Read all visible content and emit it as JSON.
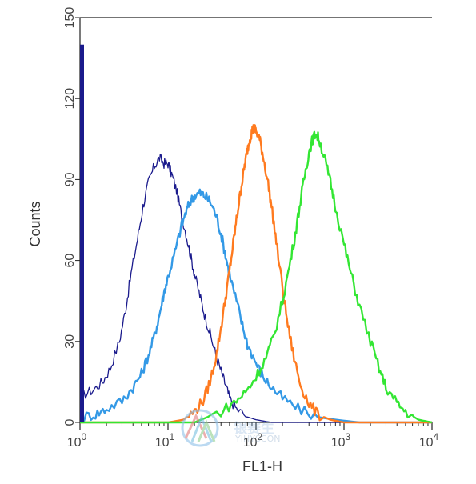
{
  "chart_data": {
    "type": "line",
    "title": "",
    "xlabel": "FL1-H",
    "ylabel": "Counts",
    "x_scale": "log",
    "xlim": [
      1,
      10000
    ],
    "ylim": [
      0,
      150
    ],
    "x_ticks": [
      {
        "base": "10",
        "exp": "0"
      },
      {
        "base": "10",
        "exp": "1"
      },
      {
        "base": "10",
        "exp": "2"
      },
      {
        "base": "10",
        "exp": "3"
      },
      {
        "base": "10",
        "exp": "4"
      }
    ],
    "y_ticks": [
      "0",
      "30",
      "60",
      "90",
      "120",
      "150"
    ],
    "grid": false,
    "legend": "none",
    "series": [
      {
        "color": "#1a1a8c",
        "points": [
          [
            1.05,
            10
          ],
          [
            1.4,
            12
          ],
          [
            1.8,
            15
          ],
          [
            2.2,
            20
          ],
          [
            2.8,
            30
          ],
          [
            3.3,
            42
          ],
          [
            3.8,
            55
          ],
          [
            4.5,
            68
          ],
          [
            5.2,
            80
          ],
          [
            6.0,
            89
          ],
          [
            7.0,
            95
          ],
          [
            8.0,
            98
          ],
          [
            9.0,
            96
          ],
          [
            10,
            96
          ],
          [
            11,
            92
          ],
          [
            12.5,
            86
          ],
          [
            14,
            78
          ],
          [
            16,
            70
          ],
          [
            18,
            62
          ],
          [
            20,
            55
          ],
          [
            23,
            47
          ],
          [
            26,
            40
          ],
          [
            30,
            33
          ],
          [
            35,
            25
          ],
          [
            40,
            19
          ],
          [
            45,
            14
          ],
          [
            50,
            9
          ],
          [
            60,
            5
          ],
          [
            80,
            2
          ],
          [
            100,
            1
          ],
          [
            150,
            0
          ],
          [
            300,
            0
          ],
          [
            10000,
            0
          ]
        ]
      },
      {
        "color": "#3399e6",
        "points": [
          [
            1.05,
            2
          ],
          [
            1.5,
            3
          ],
          [
            2,
            5
          ],
          [
            3,
            8
          ],
          [
            4,
            13
          ],
          [
            5,
            18
          ],
          [
            6,
            25
          ],
          [
            7,
            32
          ],
          [
            8,
            40
          ],
          [
            9,
            48
          ],
          [
            10,
            54
          ],
          [
            12,
            63
          ],
          [
            14,
            72
          ],
          [
            16,
            78
          ],
          [
            18,
            82
          ],
          [
            20,
            84
          ],
          [
            23,
            85
          ],
          [
            26,
            84
          ],
          [
            30,
            82
          ],
          [
            35,
            77
          ],
          [
            40,
            70
          ],
          [
            45,
            62
          ],
          [
            50,
            55
          ],
          [
            60,
            45
          ],
          [
            70,
            36
          ],
          [
            80,
            29
          ],
          [
            100,
            22
          ],
          [
            120,
            17
          ],
          [
            150,
            13
          ],
          [
            200,
            9
          ],
          [
            300,
            5
          ],
          [
            500,
            2
          ],
          [
            800,
            1
          ],
          [
            1500,
            0
          ],
          [
            10000,
            0
          ]
        ]
      },
      {
        "color": "#ff7a1f",
        "points": [
          [
            1,
            0
          ],
          [
            10,
            0
          ],
          [
            15,
            1
          ],
          [
            20,
            4
          ],
          [
            25,
            8
          ],
          [
            30,
            15
          ],
          [
            35,
            24
          ],
          [
            40,
            35
          ],
          [
            45,
            46
          ],
          [
            50,
            56
          ],
          [
            55,
            66
          ],
          [
            60,
            75
          ],
          [
            65,
            83
          ],
          [
            70,
            90
          ],
          [
            75,
            96
          ],
          [
            80,
            101
          ],
          [
            85,
            105
          ],
          [
            90,
            108
          ],
          [
            95,
            109
          ],
          [
            100,
            108
          ],
          [
            110,
            105
          ],
          [
            120,
            99
          ],
          [
            135,
            90
          ],
          [
            150,
            80
          ],
          [
            170,
            67
          ],
          [
            200,
            50
          ],
          [
            230,
            36
          ],
          [
            270,
            24
          ],
          [
            320,
            14
          ],
          [
            400,
            7
          ],
          [
            500,
            3
          ],
          [
            700,
            1
          ],
          [
            1000,
            0
          ],
          [
            10000,
            0
          ]
        ]
      },
      {
        "color": "#33e633",
        "points": [
          [
            1,
            0
          ],
          [
            20,
            0
          ],
          [
            40,
            4
          ],
          [
            60,
            8
          ],
          [
            80,
            12
          ],
          [
            100,
            17
          ],
          [
            130,
            24
          ],
          [
            160,
            32
          ],
          [
            200,
            45
          ],
          [
            240,
            58
          ],
          [
            280,
            70
          ],
          [
            320,
            82
          ],
          [
            360,
            92
          ],
          [
            400,
            100
          ],
          [
            440,
            105
          ],
          [
            480,
            107
          ],
          [
            520,
            105
          ],
          [
            600,
            98
          ],
          [
            700,
            89
          ],
          [
            800,
            80
          ],
          [
            1000,
            66
          ],
          [
            1200,
            55
          ],
          [
            1500,
            43
          ],
          [
            2000,
            30
          ],
          [
            2500,
            20
          ],
          [
            3000,
            13
          ],
          [
            4000,
            7
          ],
          [
            5000,
            4
          ],
          [
            7000,
            1
          ],
          [
            10000,
            0
          ]
        ]
      }
    ]
  },
  "watermark": {
    "text_cn": "银赛生",
    "text_en": "YIHYSCON"
  }
}
